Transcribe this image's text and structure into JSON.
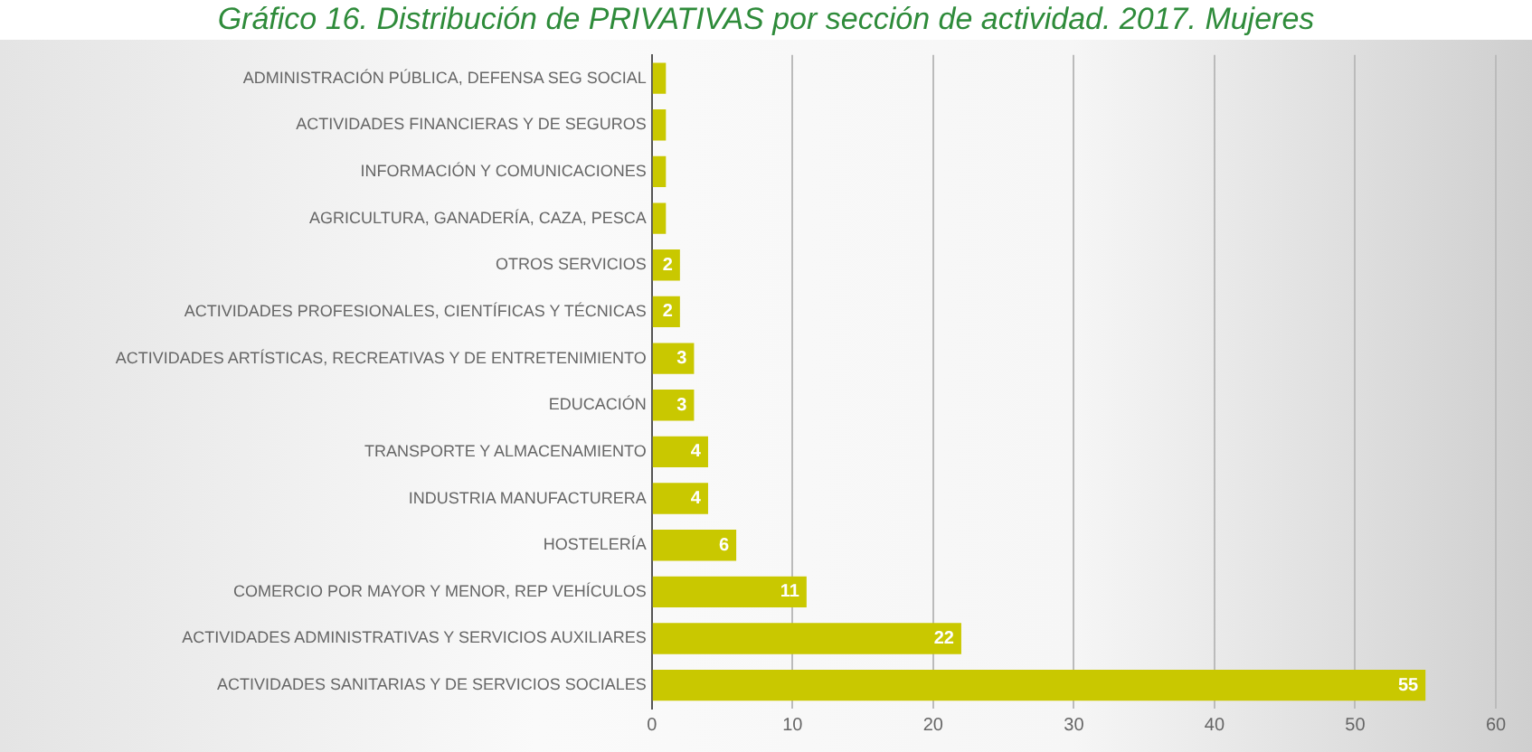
{
  "chart_data": {
    "type": "bar",
    "orientation": "horizontal",
    "title": "Gráfico 16. Distribución de PRIVATIVAS por sección de actividad. 2017. Mujeres",
    "categories": [
      "ADMINISTRACIÓN PÚBLICA, DEFENSA SEG SOCIAL",
      "ACTIVIDADES FINANCIERAS Y DE SEGUROS",
      "INFORMACIÓN Y COMUNICACIONES",
      "AGRICULTURA, GANADERÍA, CAZA, PESCA",
      "OTROS SERVICIOS",
      "ACTIVIDADES PROFESIONALES, CIENTÍFICAS Y TÉCNICAS",
      "ACTIVIDADES ARTÍSTICAS, RECREATIVAS Y DE ENTRETENIMIENTO",
      "EDUCACIÓN",
      "TRANSPORTE Y ALMACENAMIENTO",
      "INDUSTRIA MANUFACTURERA",
      "HOSTELERÍA",
      "COMERCIO POR MAYOR Y MENOR, REP VEHÍCULOS",
      "ACTIVIDADES ADMINISTRATIVAS Y SERVICIOS AUXILIARES",
      "ACTIVIDADES SANITARIAS Y DE SERVICIOS SOCIALES"
    ],
    "values": [
      1,
      1,
      1,
      1,
      2,
      2,
      3,
      3,
      4,
      4,
      6,
      11,
      22,
      55
    ],
    "value_labels": [
      null,
      null,
      null,
      null,
      "2",
      "2",
      "3",
      "3",
      "4",
      "4",
      "6",
      "11",
      "22",
      "55"
    ],
    "color": "#c9c800",
    "xlim": [
      0,
      60
    ],
    "xticks": [
      0,
      10,
      20,
      30,
      40,
      50,
      60
    ],
    "grid": "x",
    "legend": false
  }
}
